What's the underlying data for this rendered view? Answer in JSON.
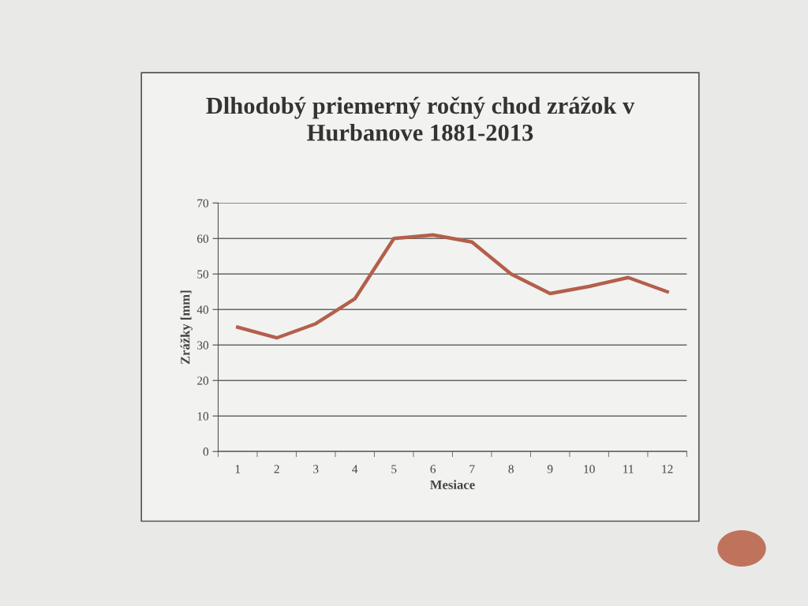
{
  "chart_data": {
    "type": "line",
    "title": "Dlhodobý priemerný ročný chod zrážok v\nHurbanove 1881-2013",
    "xlabel": "Mesiace",
    "ylabel": "Zrážky [mm]",
    "categories": [
      "1",
      "2",
      "3",
      "4",
      "5",
      "6",
      "7",
      "8",
      "9",
      "10",
      "11",
      "12"
    ],
    "series": [
      {
        "color": "#b35f4c",
        "values": [
          35,
          32,
          36,
          43,
          60,
          61,
          59,
          50,
          44.5,
          46.5,
          49,
          45
        ]
      }
    ],
    "ylim": [
      0,
      70
    ],
    "yticks": [
      0,
      10,
      20,
      30,
      40,
      50,
      60,
      70
    ],
    "grid": "y",
    "marker": "none",
    "line_style": "solid"
  }
}
